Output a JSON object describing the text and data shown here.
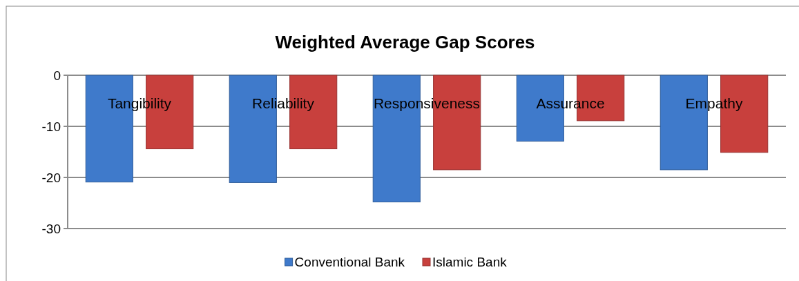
{
  "chart_data": {
    "type": "bar",
    "title": "Weighted Average Gap Scores",
    "categories": [
      "Tangibility",
      "Reliability",
      "Responsiveness",
      "Assurance",
      "Empathy"
    ],
    "series": [
      {
        "name": "Conventional Bank",
        "color": "#3f7acb",
        "values": [
          -20.9,
          -21,
          -24.8,
          -12.9,
          -18.5
        ]
      },
      {
        "name": "Islamic Bank",
        "color": "#c8403d",
        "values": [
          -14.4,
          -14.4,
          -18.5,
          -8.9,
          -15.1
        ]
      }
    ],
    "ylim": [
      -30,
      0
    ],
    "yticks": [
      -30,
      -20,
      -10,
      0
    ],
    "grid": "y",
    "legend": "bottom"
  }
}
